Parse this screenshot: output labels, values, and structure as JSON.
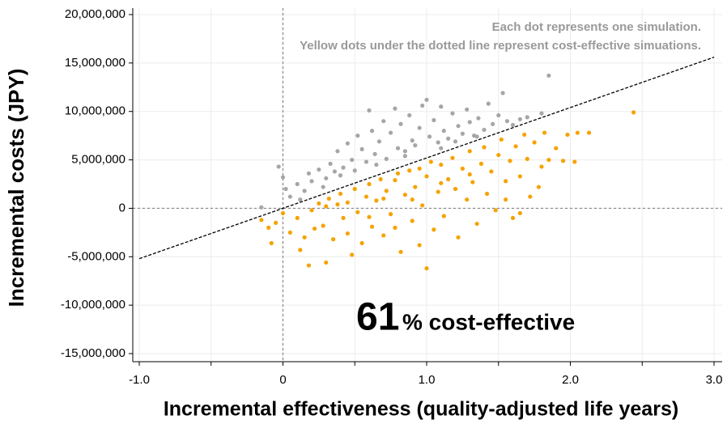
{
  "chart_data": {
    "type": "scatter",
    "xlabel": "Incremental effectiveness (quality-adjusted life years)",
    "ylabel": "Incremental costs (JPY)",
    "annotations": [
      "Each dot represents one simulation.",
      "Yellow dots under the dotted line represent cost-effective simuations."
    ],
    "highlight": {
      "value": 61,
      "text": "% cost-effective"
    },
    "xlim": [
      -1,
      3
    ],
    "ylim": [
      -15000000,
      20000000
    ],
    "xticks": [
      {
        "value": -1,
        "label": "-1.0"
      },
      0,
      {
        "value": 1,
        "label": "1.0"
      },
      {
        "value": 2,
        "label": "2.0"
      },
      {
        "value": 3,
        "label": "3.0"
      }
    ],
    "minor_xticks": [
      -0.5,
      0.5,
      1.5,
      2.5
    ],
    "yticks": [
      {
        "value": -15000000,
        "label": "-15,000,000"
      },
      {
        "value": -10000000,
        "label": "-10,000,000"
      },
      {
        "value": -5000000,
        "label": "-5,000,000"
      },
      0,
      {
        "value": 5000000,
        "label": "5,000,000"
      },
      {
        "value": 10000000,
        "label": "10,000,000"
      },
      {
        "value": 15000000,
        "label": "15,000,000"
      },
      {
        "value": 20000000,
        "label": "20,000,000"
      }
    ],
    "grid": true,
    "reference_line": {
      "x": [
        -1,
        3
      ],
      "values": [
        -5200000,
        15600000
      ],
      "color": "#000000"
    },
    "series": [
      {
        "color": "#a6a6a6",
        "x": [
          -0.03,
          0.0,
          0.02,
          0.05,
          0.1,
          0.15,
          0.18,
          0.2,
          0.25,
          0.28,
          0.3,
          0.33,
          0.36,
          0.38,
          0.4,
          0.42,
          0.45,
          0.48,
          0.5,
          0.52,
          0.55,
          0.58,
          0.6,
          0.62,
          0.64,
          0.67,
          0.7,
          0.72,
          0.75,
          0.78,
          0.8,
          0.82,
          0.85,
          0.88,
          0.9,
          0.92,
          0.95,
          0.97,
          1.0,
          1.02,
          1.05,
          1.08,
          1.1,
          1.12,
          1.15,
          1.18,
          1.2,
          1.22,
          1.25,
          1.28,
          1.3,
          1.33,
          1.36,
          1.4,
          1.43,
          1.46,
          1.5,
          1.53,
          1.56,
          1.6,
          1.65,
          1.7,
          1.8,
          1.85,
          -0.15,
          0.12,
          0.65,
          0.85,
          1.1,
          1.35
        ],
        "values": [
          4300000,
          3200000,
          2000000,
          1200000,
          2500000,
          1800000,
          3600000,
          2800000,
          4000000,
          2200000,
          3100000,
          4600000,
          3800000,
          5900000,
          3400000,
          4200000,
          6700000,
          5000000,
          3900000,
          7500000,
          6100000,
          4800000,
          10100000,
          8000000,
          5600000,
          6900000,
          9000000,
          5100000,
          7800000,
          10300000,
          6200000,
          8700000,
          5900000,
          9600000,
          7000000,
          6500000,
          8300000,
          10600000,
          11200000,
          7400000,
          9100000,
          6800000,
          10500000,
          8000000,
          7200000,
          9800000,
          6900000,
          8500000,
          7700000,
          10200000,
          8900000,
          7500000,
          9300000,
          8100000,
          10800000,
          8700000,
          9600000,
          11900000,
          9000000,
          8600000,
          9200000,
          9400000,
          9800000,
          13700000,
          100000,
          900000,
          4500000,
          5400000,
          6200000,
          7400000
        ]
      },
      {
        "color": "#f5a300",
        "x": [
          -0.15,
          -0.1,
          -0.08,
          -0.05,
          0.0,
          0.05,
          0.1,
          0.12,
          0.15,
          0.18,
          0.2,
          0.22,
          0.25,
          0.28,
          0.3,
          0.32,
          0.35,
          0.38,
          0.4,
          0.42,
          0.45,
          0.48,
          0.5,
          0.52,
          0.55,
          0.58,
          0.6,
          0.62,
          0.65,
          0.68,
          0.7,
          0.72,
          0.75,
          0.78,
          0.8,
          0.82,
          0.85,
          0.88,
          0.9,
          0.92,
          0.95,
          0.97,
          1.0,
          1.0,
          1.03,
          1.05,
          1.08,
          1.1,
          1.12,
          1.15,
          1.18,
          1.2,
          1.22,
          1.25,
          1.28,
          1.3,
          1.32,
          1.35,
          1.38,
          1.4,
          1.42,
          1.45,
          1.48,
          1.5,
          1.52,
          1.55,
          1.58,
          1.6,
          1.62,
          1.65,
          1.68,
          1.7,
          1.72,
          1.75,
          1.78,
          1.8,
          1.82,
          1.85,
          1.9,
          1.95,
          1.98,
          2.03,
          2.05,
          2.13,
          2.44,
          0.6,
          0.9,
          1.3,
          1.1,
          0.7,
          0.45,
          0.3,
          1.55,
          1.65,
          0.95,
          0.78
        ],
        "values": [
          -1200000,
          -2000000,
          -3600000,
          -1500000,
          -500000,
          -2500000,
          -1000000,
          -4300000,
          -3000000,
          -5900000,
          -200000,
          -2100000,
          500000,
          -1800000,
          -5600000,
          1000000,
          -3200000,
          400000,
          1500000,
          -1000000,
          -2600000,
          -4800000,
          2000000,
          -400000,
          -3600000,
          1200000,
          2500000,
          -1900000,
          800000,
          3000000,
          -2800000,
          1800000,
          -600000,
          2900000,
          3600000,
          -4500000,
          1400000,
          3900000,
          -1300000,
          2200000,
          4100000,
          300000,
          -6200000,
          3300000,
          4800000,
          -2200000,
          1700000,
          4500000,
          -800000,
          3000000,
          5200000,
          2000000,
          -3000000,
          4100000,
          900000,
          5900000,
          2700000,
          -1600000,
          4600000,
          6300000,
          1500000,
          3800000,
          -200000,
          5500000,
          7100000,
          2800000,
          4900000,
          -1000000,
          6400000,
          3300000,
          7600000,
          5100000,
          1200000,
          6800000,
          2200000,
          4300000,
          7800000,
          5000000,
          6200000,
          4900000,
          7600000,
          4800000,
          7800000,
          7800000,
          9900000,
          -900000,
          900000,
          3500000,
          2600000,
          1000000,
          600000,
          200000,
          900000,
          -500000,
          -3800000,
          -2000000
        ]
      }
    ]
  }
}
